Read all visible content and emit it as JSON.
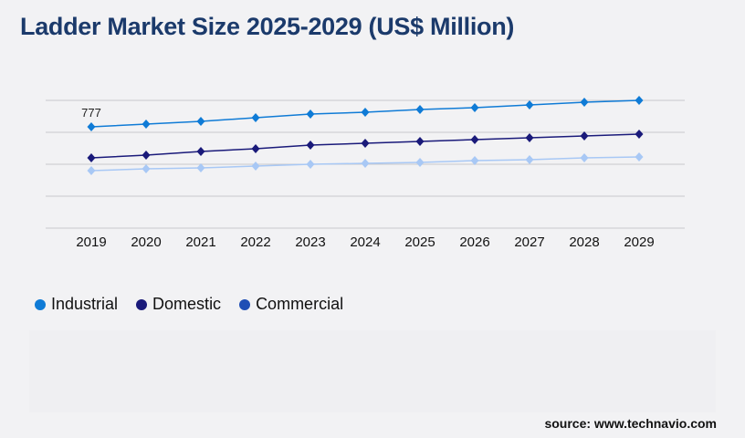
{
  "title": "Ladder Market Size 2025-2029 (US$ Million)",
  "source": "source: www.technavio.com",
  "chart_data": {
    "type": "line",
    "title": "Ladder Market Size 2025-2029 (US$ Million)",
    "categories": [
      "2019",
      "2020",
      "2021",
      "2022",
      "2023",
      "2024",
      "2025",
      "2026",
      "2027",
      "2028",
      "2029"
    ],
    "ylim": [
      0,
      980
    ],
    "gridlines": [
      0,
      245,
      490,
      735,
      980
    ],
    "grid": true,
    "legend_position": "bottom-left",
    "series": [
      {
        "name": "Industrial",
        "color": "#0f7bd6",
        "legend_color": "#0f7bd6",
        "values": [
          777,
          798,
          819,
          847,
          875,
          889,
          910,
          924,
          945,
          966,
          980
        ]
      },
      {
        "name": "Domestic",
        "color": "#1a1a7a",
        "legend_color": "#1a1a7a",
        "values": [
          539,
          560,
          588,
          609,
          637,
          651,
          665,
          679,
          693,
          707,
          721
        ]
      },
      {
        "name": "Commercial",
        "color": "#a8c8f5",
        "legend_color": "#1f4fb5",
        "values": [
          441,
          455,
          462,
          476,
          490,
          497,
          504,
          518,
          525,
          539,
          546
        ]
      }
    ],
    "annotations": [
      {
        "series": "Industrial",
        "category": "2019",
        "text": "777"
      }
    ]
  }
}
